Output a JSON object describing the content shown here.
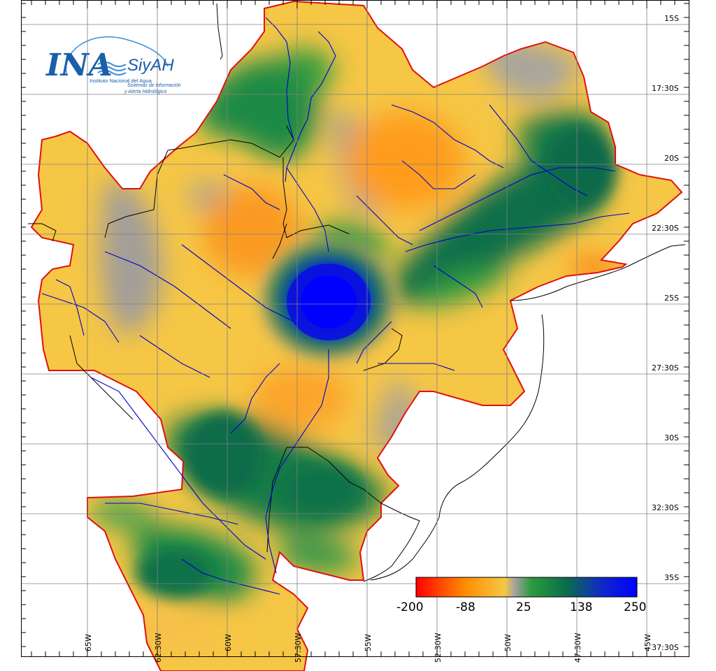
{
  "map": {
    "y_axis_labels": [
      "15S",
      "17:30S",
      "20S",
      "22:30S",
      "25S",
      "27:30S",
      "30S",
      "32:30S",
      "35S",
      "37:30S"
    ],
    "x_axis_labels": [
      "65W",
      "62:30W",
      "60W",
      "57:30W",
      "55W",
      "52:30W",
      "50W",
      "47:30W",
      "45W"
    ],
    "colorbar": {
      "labels": [
        "-200",
        "-88",
        "25",
        "138",
        "250"
      ],
      "colors": [
        "#ff0000",
        "#ff8c00",
        "#f5c842",
        "#a0a0a0",
        "#2e9a40",
        "#0a6e4a",
        "#1028c8",
        "#0000ff"
      ]
    }
  },
  "logo": {
    "ina": "INA",
    "siyah": "SiyAH",
    "subtitle": "Instituto Nacional del Agua",
    "tagline_1": "Sistemas de información",
    "tagline_2": "y Alerta Hidrológico"
  }
}
